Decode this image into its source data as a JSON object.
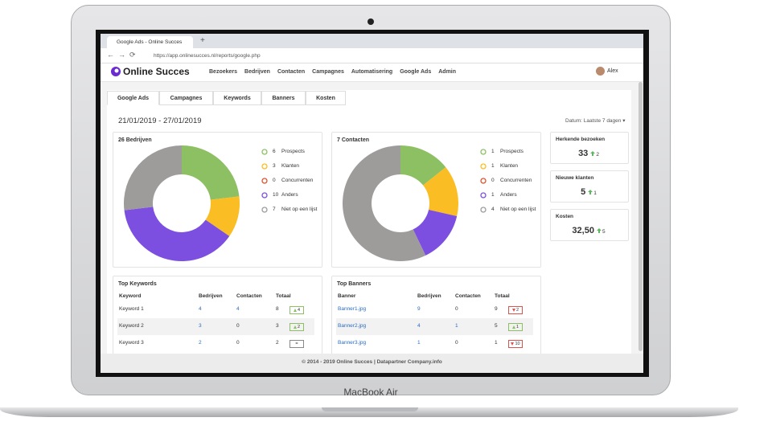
{
  "browser": {
    "tab_title": "Google Ads - Online Succes",
    "url": "https://app.onlinesucces.nl/reports/google.php"
  },
  "nav": {
    "brand": "Online Succes",
    "items": [
      "Bezoekers",
      "Bedrijven",
      "Contacten",
      "Campagnes",
      "Automatisering",
      "Google Ads",
      "Admin"
    ],
    "user": "Alex"
  },
  "tabs": [
    "Google Ads",
    "Campagnes",
    "Keywords",
    "Banners",
    "Kosten"
  ],
  "date_range": "21/01/2019 - 27/01/2019",
  "date_filter": {
    "label": "Datum:",
    "value": "Laatste 7 dagen"
  },
  "chart_data": [
    {
      "type": "donut",
      "title": "26 Bedrijven",
      "categories": [
        "Prospects",
        "Klanten",
        "Concurrenten",
        "Anders",
        "Niet op een lijst"
      ],
      "values": [
        6,
        3,
        0,
        10,
        7
      ],
      "colors": [
        "#8cc063",
        "#fbbd24",
        "#e0522d",
        "#7c4fe0",
        "#9e9b9b"
      ]
    },
    {
      "type": "donut",
      "title": "7 Contacten",
      "categories": [
        "Prospects",
        "Klanten",
        "Concurrenten",
        "Anders",
        "Niet op een lijst"
      ],
      "values": [
        1,
        1,
        0,
        1,
        4
      ],
      "colors": [
        "#8cc063",
        "#fbbd24",
        "#e0522d",
        "#7c4fe0",
        "#9e9b9b"
      ]
    }
  ],
  "stats": [
    {
      "label": "Herkende bezoeken",
      "value": "33",
      "change": "2"
    },
    {
      "label": "Nieuwe klanten",
      "value": "5",
      "change": "1"
    },
    {
      "label": "Kosten",
      "value": "32,50",
      "change": "5"
    }
  ],
  "tables": [
    {
      "title": "Top Keywords",
      "columns": [
        "Keyword",
        "Bedrijven",
        "Contacten",
        "Totaal"
      ],
      "rows": [
        [
          "Keyword 1",
          "4",
          "4",
          "8",
          {
            "trend": "up",
            "text": "4"
          }
        ],
        [
          "Keyword 2",
          "3",
          "0",
          "3",
          {
            "trend": "up",
            "text": "2"
          }
        ],
        [
          "Keyword 3",
          "2",
          "0",
          "2",
          {
            "trend": "same",
            "text": "="
          }
        ]
      ]
    },
    {
      "title": "Top Banners",
      "columns": [
        "Banner",
        "Bedrijven",
        "Contacten",
        "Totaal"
      ],
      "rows": [
        [
          "Banner1.jpg",
          "9",
          "0",
          "9",
          {
            "trend": "down",
            "text": "2"
          }
        ],
        [
          "Banner2.jpg",
          "4",
          "1",
          "5",
          {
            "trend": "up",
            "text": "1"
          }
        ],
        [
          "Banner3.jpg",
          "1",
          "0",
          "1",
          {
            "trend": "down",
            "text": "10"
          }
        ]
      ]
    }
  ],
  "footer": "© 2014 - 2019 Online Succes | Datapartner Company.info",
  "device_label": "MacBook Air"
}
